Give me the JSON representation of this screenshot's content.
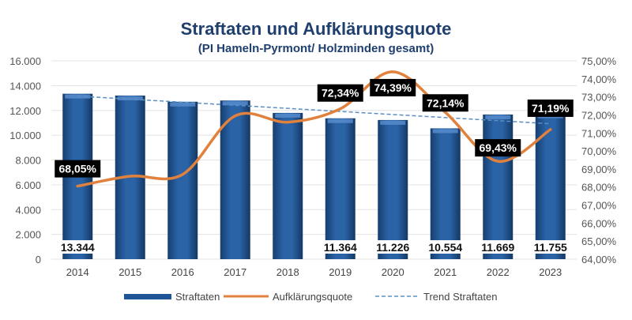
{
  "chart_data": {
    "type": "bar+line",
    "title": "Straftaten und Aufklärungsquote",
    "subtitle": "(PI Hameln-Pyrmont/ Holzminden gesamt)",
    "categories": [
      "2014",
      "2015",
      "2016",
      "2017",
      "2018",
      "2019",
      "2020",
      "2021",
      "2022",
      "2023"
    ],
    "series": [
      {
        "name": "Straftaten",
        "type": "bar",
        "axis": "left",
        "values": [
          13344,
          13200,
          12700,
          12800,
          11800,
          11364,
          11226,
          10554,
          11669,
          11755
        ],
        "labels": [
          "13.344",
          null,
          null,
          null,
          null,
          "11.364",
          "11.226",
          "10.554",
          "11.669",
          "11.755"
        ],
        "color": "#1f5597"
      },
      {
        "name": "Aufklärungsquote",
        "type": "line",
        "axis": "right",
        "smooth": true,
        "values": [
          68.05,
          68.6,
          68.7,
          71.95,
          71.6,
          72.34,
          74.39,
          72.14,
          69.43,
          71.19
        ],
        "labels": [
          "68,05%",
          null,
          null,
          null,
          null,
          "72,34%",
          "74,39%",
          "72,14%",
          "69,43%",
          "71,19%"
        ],
        "color": "#e0823d"
      },
      {
        "name": "Trend Straftaten",
        "type": "trendline",
        "axis": "left",
        "of": "Straftaten",
        "color": "#5b8fc4"
      }
    ],
    "left_axis": {
      "range": [
        0,
        16000
      ],
      "ticks": [
        "0",
        "2.000",
        "4.000",
        "6.000",
        "8.000",
        "10.000",
        "12.000",
        "14.000",
        "16.000"
      ]
    },
    "right_axis": {
      "range": [
        64,
        75
      ],
      "ticks": [
        "64,00%",
        "65,00%",
        "66,00%",
        "67,00%",
        "68,00%",
        "69,00%",
        "70,00%",
        "71,00%",
        "72,00%",
        "73,00%",
        "74,00%",
        "75,00%"
      ]
    },
    "grid": true,
    "legend_position": "bottom",
    "title_color": "#1f3f6e"
  }
}
